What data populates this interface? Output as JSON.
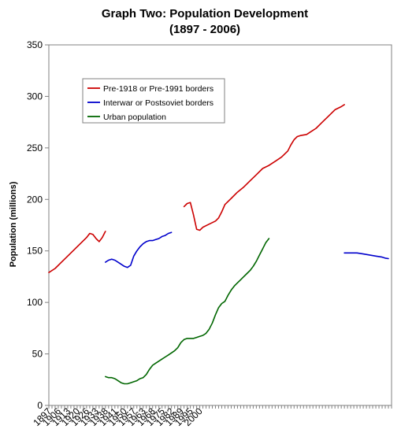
{
  "chart_data": {
    "type": "line",
    "title": "Graph Two: Population Development",
    "subtitle": "(1897 - 2006)",
    "xlabel": "",
    "ylabel": "Population (millions)",
    "xlim": [
      1897,
      2006
    ],
    "ylim": [
      0,
      350
    ],
    "y_ticks": [
      0,
      50,
      100,
      150,
      200,
      250,
      300,
      350
    ],
    "x_ticks": [
      "1897",
      "1906",
      "1913",
      "1920",
      "1926",
      "1933",
      "1938",
      "1941",
      "1950",
      "1957",
      "1963",
      "1968",
      "1975",
      "1982",
      "1989",
      "1995",
      "2000"
    ],
    "grid": false,
    "legend_position": "top-left",
    "series": [
      {
        "name": "Pre-1918 or Pre-1991 borders",
        "color": "#cc0000",
        "segments": [
          [
            [
              1897,
              129
            ],
            [
              1899,
              133
            ],
            [
              1901,
              139
            ],
            [
              1903,
              145
            ],
            [
              1905,
              151
            ],
            [
              1907,
              157
            ],
            [
              1909,
              163
            ],
            [
              1910,
              167
            ],
            [
              1911,
              166
            ],
            [
              1912,
              162
            ],
            [
              1913,
              159
            ],
            [
              1914,
              163
            ],
            [
              1915,
              169
            ]
          ],
          [
            [
              1940,
              193
            ],
            [
              1941,
              196
            ],
            [
              1942,
              197
            ],
            [
              1943,
              185
            ],
            [
              1944,
              171
            ],
            [
              1945,
              170
            ],
            [
              1946,
              173
            ],
            [
              1948,
              176
            ],
            [
              1950,
              179
            ],
            [
              1951,
              182
            ],
            [
              1952,
              188
            ],
            [
              1953,
              195
            ],
            [
              1955,
              201
            ],
            [
              1957,
              207
            ],
            [
              1959,
              212
            ],
            [
              1961,
              218
            ],
            [
              1963,
              224
            ],
            [
              1965,
              230
            ],
            [
              1967,
              233
            ],
            [
              1969,
              237
            ],
            [
              1971,
              241
            ],
            [
              1973,
              247
            ],
            [
              1974,
              253
            ],
            [
              1975,
              258
            ],
            [
              1976,
              261
            ],
            [
              1977,
              262
            ],
            [
              1979,
              263
            ],
            [
              1980,
              265
            ],
            [
              1982,
              269
            ],
            [
              1984,
              275
            ],
            [
              1986,
              281
            ],
            [
              1988,
              287
            ],
            [
              1990,
              290
            ],
            [
              1991,
              292
            ]
          ]
        ]
      },
      {
        "name": "Interwar or Postsoviet borders",
        "color": "#0000cc",
        "segments": [
          [
            [
              1915,
              139
            ],
            [
              1916,
              141
            ],
            [
              1917,
              142
            ],
            [
              1918,
              141
            ],
            [
              1919,
              139
            ],
            [
              1920,
              137
            ],
            [
              1921,
              135
            ],
            [
              1922,
              134
            ],
            [
              1923,
              136
            ],
            [
              1924,
              145
            ],
            [
              1925,
              150
            ],
            [
              1926,
              154
            ],
            [
              1927,
              157
            ],
            [
              1928,
              159
            ],
            [
              1929,
              160
            ],
            [
              1930,
              160
            ],
            [
              1931,
              161
            ],
            [
              1932,
              162
            ],
            [
              1933,
              164
            ],
            [
              1934,
              165
            ],
            [
              1935,
              167
            ],
            [
              1936,
              168
            ]
          ],
          [
            [
              1991,
              148
            ],
            [
              1993,
              148
            ],
            [
              1995,
              148
            ],
            [
              1997,
              147
            ],
            [
              1999,
              146
            ],
            [
              2001,
              145
            ],
            [
              2003,
              144
            ],
            [
              2004,
              143
            ],
            [
              2005,
              142.5
            ]
          ]
        ]
      },
      {
        "name": "Urban population",
        "color": "#006600",
        "segments": [
          [
            [
              1915,
              28
            ],
            [
              1916,
              27
            ],
            [
              1917,
              27
            ],
            [
              1918,
              26
            ],
            [
              1919,
              24
            ],
            [
              1920,
              22
            ],
            [
              1921,
              21
            ],
            [
              1922,
              21
            ],
            [
              1923,
              22
            ],
            [
              1924,
              23
            ],
            [
              1925,
              24
            ],
            [
              1926,
              26
            ],
            [
              1927,
              27
            ],
            [
              1928,
              30
            ],
            [
              1929,
              35
            ],
            [
              1930,
              39
            ],
            [
              1931,
              41
            ],
            [
              1932,
              43
            ],
            [
              1933,
              45
            ],
            [
              1934,
              47
            ],
            [
              1935,
              49
            ],
            [
              1936,
              51
            ],
            [
              1937,
              53
            ],
            [
              1938,
              56
            ],
            [
              1939,
              61
            ],
            [
              1940,
              64
            ],
            [
              1941,
              65
            ],
            [
              1943,
              65
            ],
            [
              1944,
              66
            ],
            [
              1945,
              67
            ],
            [
              1946,
              68
            ],
            [
              1947,
              70
            ],
            [
              1948,
              74
            ],
            [
              1949,
              80
            ],
            [
              1950,
              88
            ],
            [
              1951,
              95
            ],
            [
              1952,
              99
            ],
            [
              1953,
              101
            ],
            [
              1954,
              107
            ],
            [
              1955,
              112
            ],
            [
              1956,
              116
            ],
            [
              1957,
              119
            ],
            [
              1958,
              122
            ],
            [
              1959,
              125
            ],
            [
              1960,
              128
            ],
            [
              1961,
              131
            ],
            [
              1962,
              135
            ],
            [
              1963,
              140
            ],
            [
              1964,
              146
            ],
            [
              1965,
              152
            ],
            [
              1966,
              158
            ],
            [
              1967,
              162
            ]
          ]
        ]
      }
    ]
  }
}
